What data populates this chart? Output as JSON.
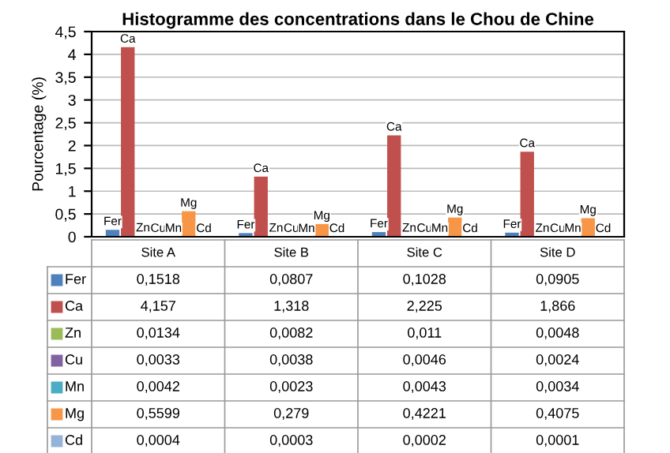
{
  "chart_data": {
    "type": "bar",
    "title": "Histogramme des concentrations dans le Chou de Chine",
    "ylabel": "Pourcentage (%)",
    "categories": [
      "Site A",
      "Site B",
      "Site C",
      "Site D"
    ],
    "series": [
      {
        "name": "Fer",
        "color": "#4f81bd",
        "values": [
          0.1518,
          0.0807,
          0.1028,
          0.0905
        ],
        "value_labels": [
          "0,1518",
          "0,0807",
          "0,1028",
          "0,0905"
        ]
      },
      {
        "name": "Ca",
        "color": "#c0504d",
        "values": [
          4.157,
          1.318,
          2.225,
          1.866
        ],
        "value_labels": [
          "4,157",
          "1,318",
          "2,225",
          "1,866"
        ]
      },
      {
        "name": "Zn",
        "color": "#9bbb59",
        "values": [
          0.0134,
          0.0082,
          0.011,
          0.0048
        ],
        "value_labels": [
          "0,0134",
          "0,0082",
          "0,011",
          "0,0048"
        ]
      },
      {
        "name": "Cu",
        "color": "#8064a2",
        "values": [
          0.0033,
          0.0038,
          0.0046,
          0.0024
        ],
        "value_labels": [
          "0,0033",
          "0,0038",
          "0,0046",
          "0,0024"
        ]
      },
      {
        "name": "Mn",
        "color": "#4bacc6",
        "values": [
          0.0042,
          0.0023,
          0.0043,
          0.0034
        ],
        "value_labels": [
          "0,0042",
          "0,0023",
          "0,0043",
          "0,0034"
        ]
      },
      {
        "name": "Mg",
        "color": "#f79646",
        "values": [
          0.5599,
          0.279,
          0.4221,
          0.4075
        ],
        "value_labels": [
          "0,5599",
          "0,279",
          "0,4221",
          "0,4075"
        ]
      },
      {
        "name": "Cd",
        "color": "#95b3d7",
        "values": [
          0.0004,
          0.0003,
          0.0002,
          0.0001
        ],
        "value_labels": [
          "0,0004",
          "0,0003",
          "0,0002",
          "0,0001"
        ]
      }
    ],
    "ylim": [
      0,
      4.5
    ],
    "yticks": [
      0,
      {
        "value": 0.5,
        "label": "0,5"
      },
      1,
      {
        "value": 1.5,
        "label": "1,5"
      },
      2,
      {
        "value": 2.5,
        "label": "2,5"
      },
      3,
      {
        "value": 3.5,
        "label": "3,5"
      },
      4,
      {
        "value": 4.5,
        "label": "4,5"
      }
    ],
    "grid": "y",
    "legend": "bottom left"
  }
}
